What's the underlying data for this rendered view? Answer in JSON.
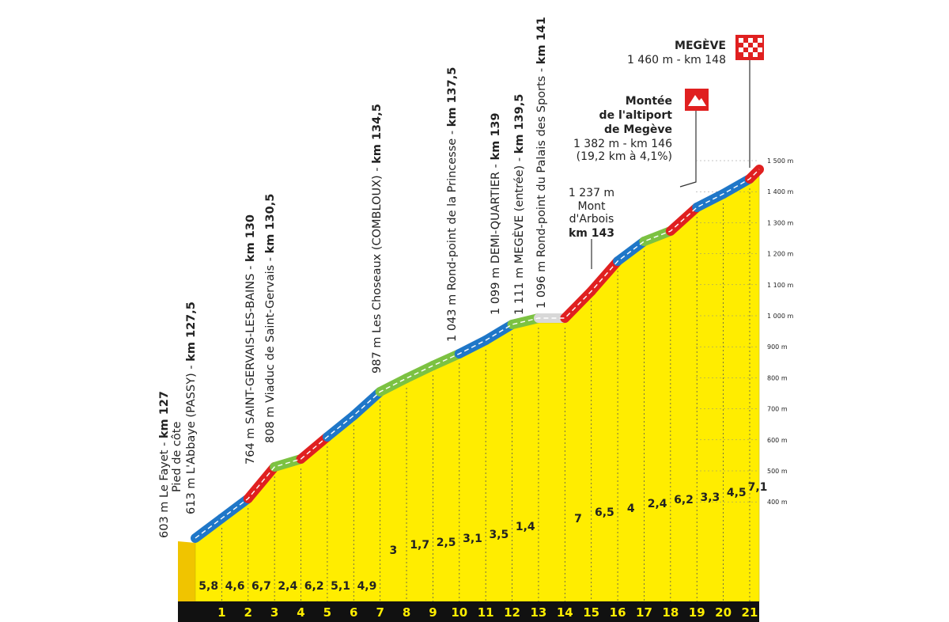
{
  "landmarks": [
    {
      "text": "603 m Le Fayet - ",
      "km": "km 127"
    },
    {
      "text": "Pied de côte"
    },
    {
      "text": "613 m L'Abbaye (PASSY) - ",
      "km": "km 127,5"
    },
    {
      "text": "764 m SAINT-GERVAIS-LES-BAINS - ",
      "km": "km 130"
    },
    {
      "text": "808 m Viaduc de Saint-Gervais - ",
      "km": "km 130,5"
    },
    {
      "text": "987 m Les Choseaux (COMBLOUX) - ",
      "km": "km 134,5"
    },
    {
      "text": "1 043 m Rond-point de la Princesse - ",
      "km": "km 137,5"
    },
    {
      "text": "1 099 m DEMI-QUARTIER - ",
      "km": "km 139"
    },
    {
      "text": "1 111 m MEGÈVE (entrée) - ",
      "km": "km 139,5"
    },
    {
      "text": "1 096 m Rond-point du Palais des Sports - ",
      "km": "km 141"
    }
  ],
  "finish": {
    "name": "MEGÈVE",
    "detail": "1 460 m - km 148"
  },
  "summit": {
    "name": [
      "Montée",
      "de l'altiport",
      "de Megève"
    ],
    "detail": [
      "1 382 m - km 146",
      "(19,2 km à 4,1%)"
    ]
  },
  "point": {
    "lines": [
      "1 237 m",
      "Mont",
      "d'Arbois"
    ],
    "km": "km 143"
  },
  "elevation_labels": [
    "1 500 m",
    "1 400 m",
    "1 300 m",
    "1 200 m",
    "1 100 m",
    "1 000 m",
    "900 m",
    "800 m",
    "700 m",
    "600 m",
    "500 m",
    "400 m"
  ],
  "km_labels": [
    "1",
    "2",
    "3",
    "4",
    "5",
    "6",
    "7",
    "8",
    "9",
    "10",
    "11",
    "12",
    "13",
    "14",
    "15",
    "16",
    "17",
    "18",
    "19",
    "20",
    "21"
  ],
  "segments": [
    {
      "gradient": "5,8",
      "color": "#1f77c8"
    },
    {
      "gradient": "4,6",
      "color": "#1f77c8"
    },
    {
      "gradient": "6,7",
      "color": "#e02020"
    },
    {
      "gradient": "2,4",
      "color": "#7cc242"
    },
    {
      "gradient": "6,2",
      "color": "#e02020"
    },
    {
      "gradient": "5,1",
      "color": "#1f77c8"
    },
    {
      "gradient": "4,9",
      "color": "#1f77c8"
    },
    {
      "gradient": "3",
      "color": "#7cc242"
    },
    {
      "gradient": "1,7",
      "color": "#7cc242"
    },
    {
      "gradient": "2,5",
      "color": "#7cc242"
    },
    {
      "gradient": "3,1",
      "color": "#1f77c8"
    },
    {
      "gradient": "3,5",
      "color": "#1f77c8"
    },
    {
      "gradient": "1,4",
      "color": "#7cc242"
    },
    {
      "color": "#d8d8d8"
    },
    {
      "gradient": "7",
      "color": "#e02020"
    },
    {
      "gradient": "6,5",
      "color": "#e02020"
    },
    {
      "gradient": "4",
      "color": "#1f77c8"
    },
    {
      "gradient": "2,4",
      "color": "#7cc242"
    },
    {
      "gradient": "6,2",
      "color": "#e02020"
    },
    {
      "gradient": "3,3",
      "color": "#1f77c8"
    },
    {
      "gradient": "4,5",
      "color": "#1f77c8"
    },
    {
      "gradient": "7,1",
      "color": "#e02020"
    }
  ]
}
